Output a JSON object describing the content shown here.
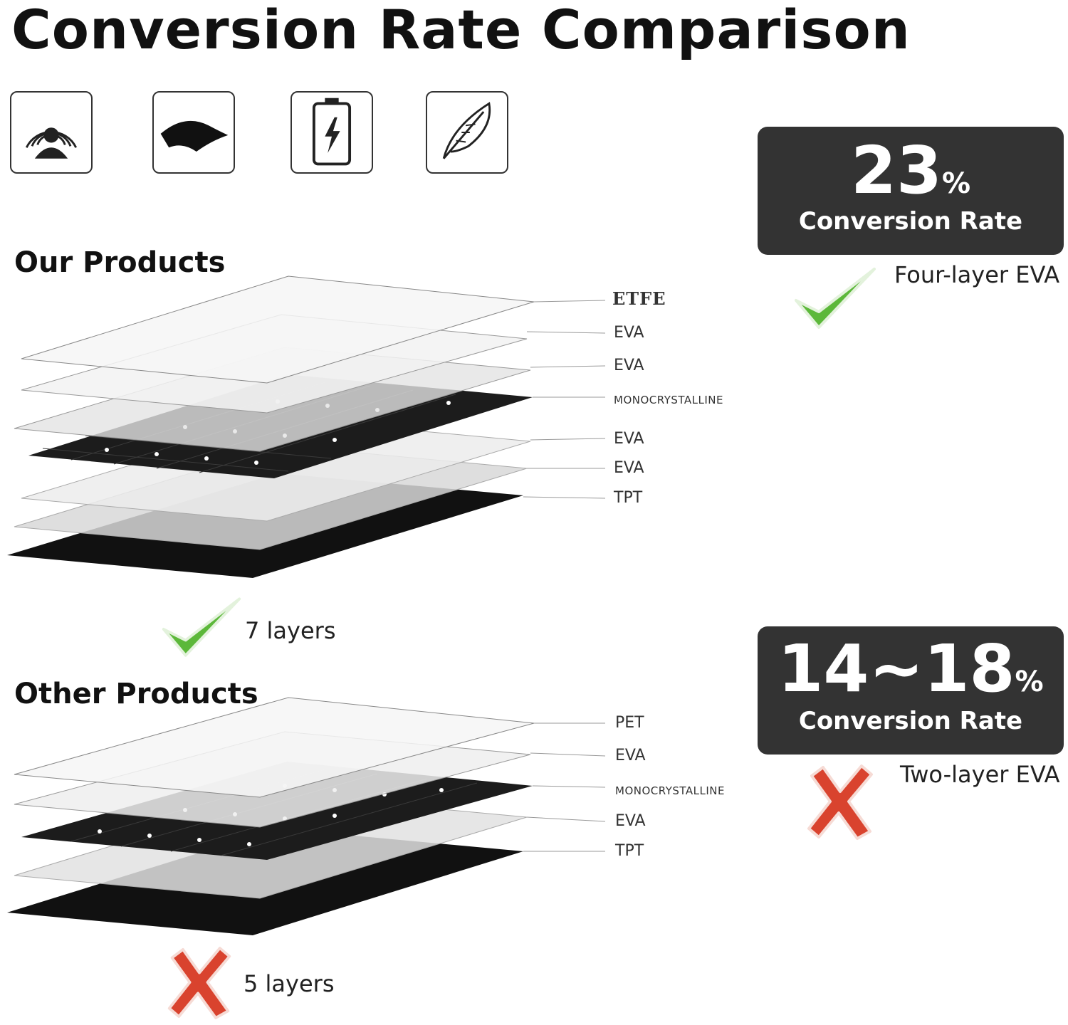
{
  "title": "Conversion Rate Comparison",
  "feature_icons": [
    "sunlight-person-icon",
    "flexible-panel-icon",
    "battery-charge-icon",
    "feather-light-icon"
  ],
  "our_products": {
    "heading": "Our Products",
    "layers": [
      "ETFE",
      "EVA",
      "EVA",
      "MONOCRYSTALLINE",
      "EVA",
      "EVA",
      "TPT"
    ],
    "layer_count": "7 layers",
    "rate_value": "23",
    "rate_unit": "%",
    "rate_label": "Conversion Rate",
    "eva_note": "Four-layer EVA",
    "verdict": "check-icon"
  },
  "other_products": {
    "heading": "Other Products",
    "layers": [
      "PET",
      "EVA",
      "MONOCRYSTALLINE",
      "EVA",
      "TPT"
    ],
    "layer_count": "5 layers",
    "rate_value": "14~18",
    "rate_unit": "%",
    "rate_label": "Conversion Rate",
    "eva_note": "Two-layer EVA",
    "verdict": "x-icon"
  },
  "colors": {
    "rate_box": "#333333",
    "check": "#5cb83a",
    "cross": "#d9432e"
  }
}
